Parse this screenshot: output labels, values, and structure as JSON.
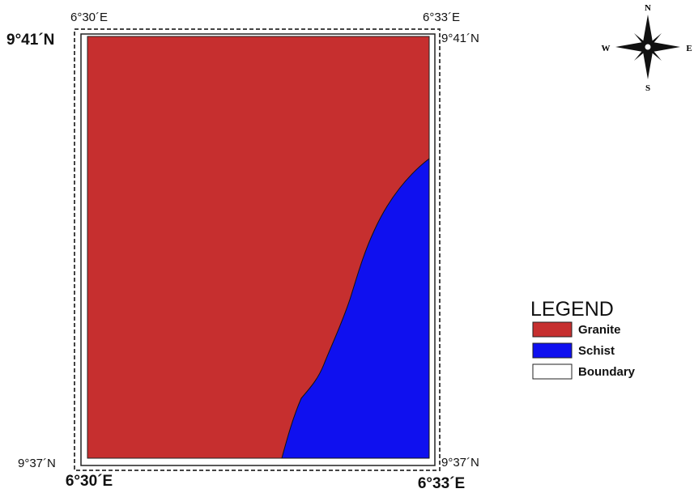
{
  "map": {
    "coordinates": {
      "top_left_lon": "6°30´E",
      "top_right_lon": "6°33´E",
      "top_left_lat": "9°41´N",
      "top_right_lat": "9°41´N",
      "bottom_left_lat": "9°37´N",
      "bottom_right_lat": "9°37´N",
      "bottom_left_lon": "6°30´E",
      "bottom_right_lon": "6°33´E"
    },
    "compass": {
      "north": "N",
      "south": "S",
      "west": "W",
      "east": "E"
    },
    "legend": {
      "title": "LEGEND",
      "items": [
        {
          "label": "Granite",
          "color": "#c62f2f"
        },
        {
          "label": "Schist",
          "color": "#0f10ef"
        },
        {
          "label": "Boundary",
          "color": "#ffffff"
        }
      ]
    }
  }
}
